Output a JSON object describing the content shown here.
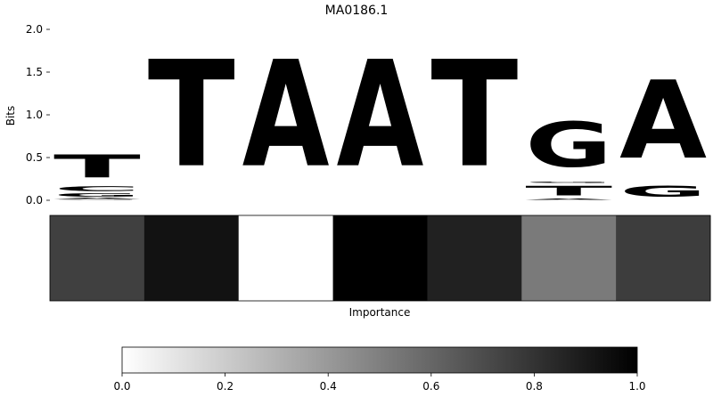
{
  "chart_data": [
    {
      "type": "sequence-logo",
      "title": "MA0186.1",
      "ylabel": "Bits",
      "ylim": [
        0,
        2.0
      ],
      "yticks": [
        "0.0",
        "0.5",
        "1.0",
        "1.5",
        "2.0"
      ],
      "colors": {
        "A": "#4ea84e",
        "C": "#4545e6",
        "G": "#ffc24a",
        "T": "#ff4b4b"
      },
      "positions": [
        [
          {
            "base": "G",
            "bits": 0.01
          },
          {
            "base": "A",
            "bits": 0.02
          },
          {
            "base": "G",
            "bits": 0.06
          },
          {
            "base": "C",
            "bits": 0.09
          },
          {
            "base": "T",
            "bits": 0.43
          }
        ],
        [
          {
            "base": "T",
            "bits": 2.0
          }
        ],
        [
          {
            "base": "A",
            "bits": 2.0
          }
        ],
        [
          {
            "base": "A",
            "bits": 2.0
          }
        ],
        [
          {
            "base": "T",
            "bits": 2.0
          }
        ],
        [
          {
            "base": "A",
            "bits": 0.02
          },
          {
            "base": "T",
            "bits": 0.18
          },
          {
            "base": "G",
            "bits": 0.02
          },
          {
            "base": "G",
            "bits": 0.85
          }
        ],
        [
          {
            "base": "G",
            "bits": 0.2
          },
          {
            "base": "A",
            "bits": 1.47
          }
        ]
      ]
    },
    {
      "type": "heatmap",
      "xlabel": "Importance",
      "values": [
        0.75,
        0.93,
        0.0,
        1.0,
        0.87,
        0.52,
        0.76
      ],
      "colorbar": {
        "range": [
          0,
          1
        ],
        "ticks": [
          "0.0",
          "0.2",
          "0.4",
          "0.6",
          "0.8",
          "1.0"
        ]
      }
    }
  ]
}
